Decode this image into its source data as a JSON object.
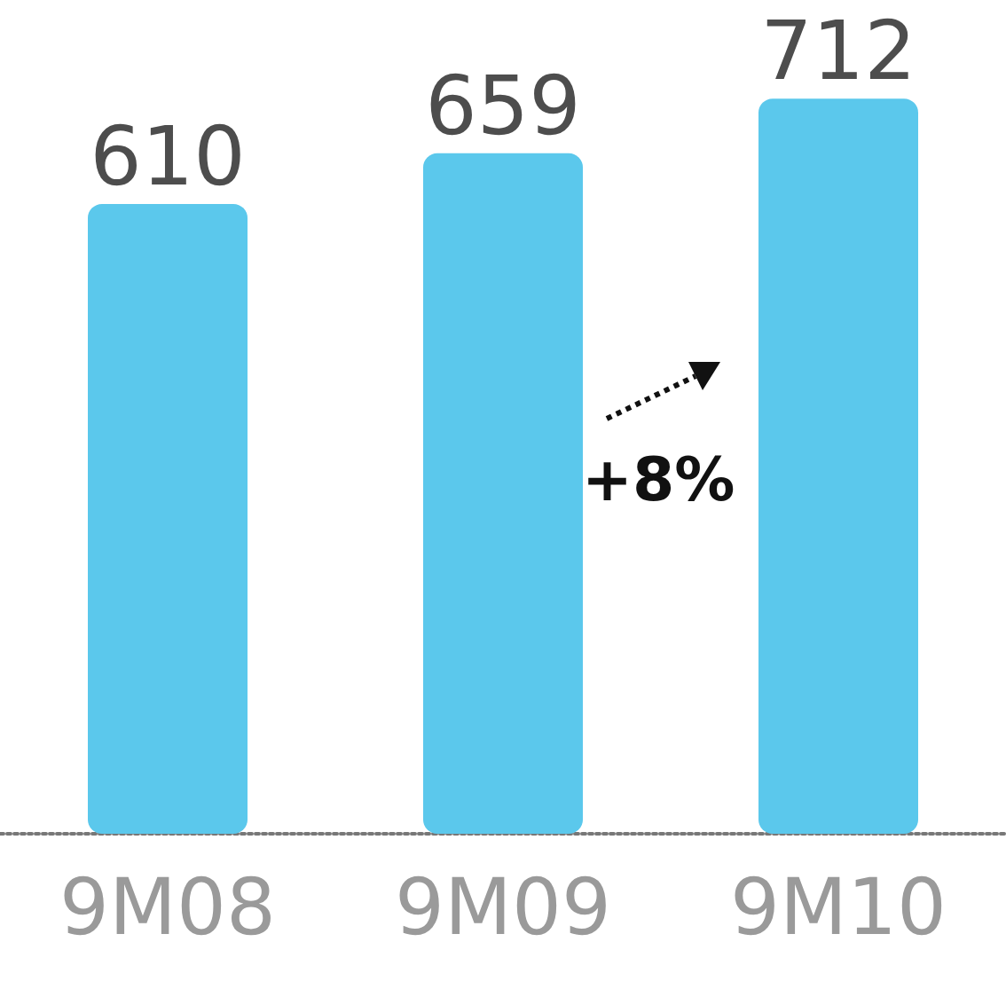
{
  "chart_data": {
    "type": "bar",
    "categories": [
      "9M08",
      "9M09",
      "9M10"
    ],
    "values": [
      610,
      659,
      712
    ],
    "color": "#5bc8ec",
    "data_labels": true,
    "annotations": [
      "+8%"
    ]
  }
}
